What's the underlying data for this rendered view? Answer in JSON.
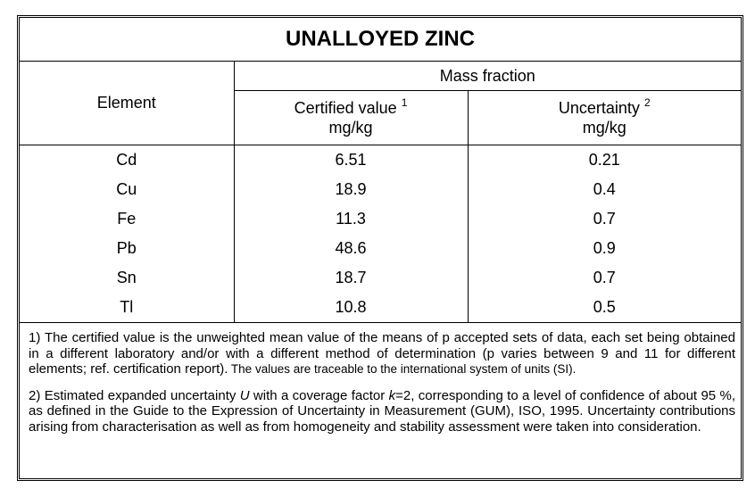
{
  "title": "UNALLOYED ZINC",
  "table": {
    "headers": {
      "element": "Element",
      "mass_fraction": "Mass fraction",
      "certified": {
        "label": "Certified value",
        "note": "1",
        "unit": "mg/kg"
      },
      "uncertainty": {
        "label": "Uncertainty",
        "note": "2",
        "unit": "mg/kg"
      }
    },
    "rows": [
      [
        "Cd",
        "6.51",
        "0.21"
      ],
      [
        "Cu",
        "18.9",
        "0.4"
      ],
      [
        "Fe",
        "11.3",
        "0.7"
      ],
      [
        "Pb",
        "48.6",
        "0.9"
      ],
      [
        "Sn",
        "18.7",
        "0.7"
      ],
      [
        "Tl",
        "10.8",
        "0.5"
      ]
    ]
  },
  "footnotes": [
    [
      "1) The certified value is the unweighted mean value of the means of p accepted sets of data, each set being obtained in a different laboratory and/or with a different method of determination (p varies between 9 and 11 for different elements; ref. certification report).",
      " The values are traceable to the international system of units (SI)."
    ],
    [
      "2) Estimated expanded uncertainty ",
      "U",
      " with a coverage factor ",
      "k",
      "=2, corresponding to a level of confidence of about 95 %, as defined in the Guide to the Expression of Uncertainty in Measurement (GUM), ISO, 1995. Uncertainty contributions arising from characterisation as well as from homogeneity and stability assessment were taken into consideration."
    ]
  ]
}
